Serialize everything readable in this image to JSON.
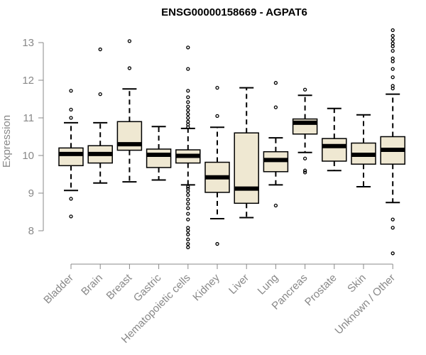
{
  "chart_data": {
    "type": "boxplot",
    "title": "ENSG00000158669 - AGPAT6",
    "xlabel": "",
    "ylabel": "Expression",
    "ylim": [
      7.35,
      13.5
    ],
    "yticks": [
      8,
      9,
      10,
      11,
      12,
      13
    ],
    "colors": {
      "box_fill": "#efe8d2",
      "stroke": "#000000",
      "axis": "#888888"
    },
    "categories": [
      "Bladder",
      "Brain",
      "Breast",
      "Gastric",
      "Hematopoietic cells",
      "Kidney",
      "Liver",
      "Lung",
      "Pancreas",
      "Prostate",
      "Skin",
      "Unknown / Other"
    ],
    "boxes": [
      {
        "min": 9.07,
        "q1": 9.73,
        "median": 10.04,
        "q3": 10.2,
        "max": 10.87,
        "outliers": [
          8.38,
          8.85,
          11.0,
          11.22,
          11.72
        ]
      },
      {
        "min": 9.27,
        "q1": 9.8,
        "median": 10.04,
        "q3": 10.26,
        "max": 10.87,
        "outliers": [
          11.63,
          12.82
        ]
      },
      {
        "min": 9.3,
        "q1": 10.14,
        "median": 10.3,
        "q3": 10.9,
        "max": 11.77,
        "outliers": [
          12.32,
          13.04
        ]
      },
      {
        "min": 9.35,
        "q1": 9.68,
        "median": 10.02,
        "q3": 10.17,
        "max": 10.77,
        "outliers": []
      },
      {
        "min": 9.22,
        "q1": 9.8,
        "median": 9.99,
        "q3": 10.15,
        "max": 10.72,
        "outliers": [
          7.56,
          7.65,
          7.77,
          7.9,
          8.0,
          8.08,
          8.3,
          8.45,
          8.6,
          8.72,
          8.83,
          8.95,
          9.05,
          9.12,
          9.17,
          10.75,
          10.82,
          10.9,
          11.0,
          11.1,
          11.2,
          11.3,
          11.42,
          11.55,
          11.72,
          12.3,
          12.87
        ]
      },
      {
        "min": 8.32,
        "q1": 9.02,
        "median": 9.42,
        "q3": 9.82,
        "max": 10.75,
        "outliers": [
          7.65,
          11.05,
          11.8
        ]
      },
      {
        "min": 8.35,
        "q1": 8.73,
        "median": 9.12,
        "q3": 10.6,
        "max": 11.8,
        "outliers": []
      },
      {
        "min": 9.22,
        "q1": 9.57,
        "median": 9.88,
        "q3": 10.1,
        "max": 10.47,
        "outliers": [
          8.67,
          11.28,
          11.93
        ]
      },
      {
        "min": 10.08,
        "q1": 10.57,
        "median": 10.87,
        "q3": 10.97,
        "max": 11.6,
        "outliers": [
          9.55,
          9.6,
          9.92,
          11.75
        ]
      },
      {
        "min": 9.6,
        "q1": 9.85,
        "median": 10.25,
        "q3": 10.45,
        "max": 11.25,
        "outliers": []
      },
      {
        "min": 9.17,
        "q1": 9.77,
        "median": 10.02,
        "q3": 10.33,
        "max": 11.08,
        "outliers": []
      },
      {
        "min": 8.75,
        "q1": 9.77,
        "median": 10.15,
        "q3": 10.5,
        "max": 11.63,
        "outliers": [
          7.4,
          8.08,
          8.3,
          11.78,
          11.85,
          12.08,
          12.3,
          12.5,
          12.58,
          12.78,
          12.9,
          12.98,
          13.08,
          13.18,
          13.33
        ]
      }
    ]
  }
}
